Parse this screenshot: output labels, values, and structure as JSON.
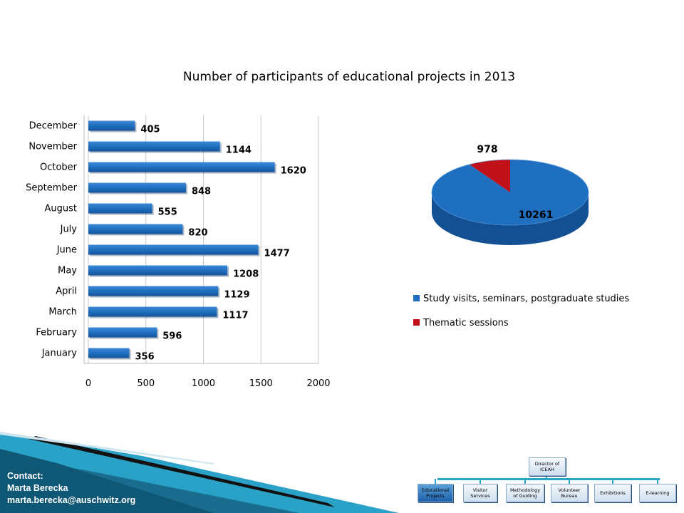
{
  "title": "Number of participants of educational projects in 2013",
  "chart_data": [
    {
      "type": "bar",
      "orientation": "horizontal",
      "categories": [
        "January",
        "February",
        "March",
        "April",
        "May",
        "June",
        "July",
        "August",
        "September",
        "October",
        "November",
        "December"
      ],
      "values": [
        356,
        596,
        1117,
        1129,
        1208,
        1477,
        820,
        555,
        848,
        1620,
        1144,
        405
      ],
      "xlim": [
        0,
        2000
      ],
      "xticks": [
        "0",
        "500",
        "1000",
        "1500",
        "2000"
      ],
      "grid": true,
      "color": "#1f6fc0"
    },
    {
      "type": "pie",
      "style": "3d",
      "slices": [
        {
          "name": "Study visits, seminars, postgraduate studies",
          "value": 10261,
          "label": "10261",
          "color": "#1f6fc0"
        },
        {
          "name": "Thematic sessions",
          "value": 978,
          "label": "978",
          "color": "#c0101a"
        }
      ],
      "legend_position": "bottom"
    }
  ],
  "contact": {
    "heading": "Contact:",
    "name": "Marta Berecka",
    "email": "marta.berecka@auschwitz.org"
  },
  "org_chart": {
    "top": "Director of ICEAH",
    "units": [
      "Educational Projects",
      "Visitor Services",
      "Methodology of Guiding",
      "Volunteer Bureau",
      "Exhibitions",
      "E-learning"
    ],
    "active_index": 0
  }
}
